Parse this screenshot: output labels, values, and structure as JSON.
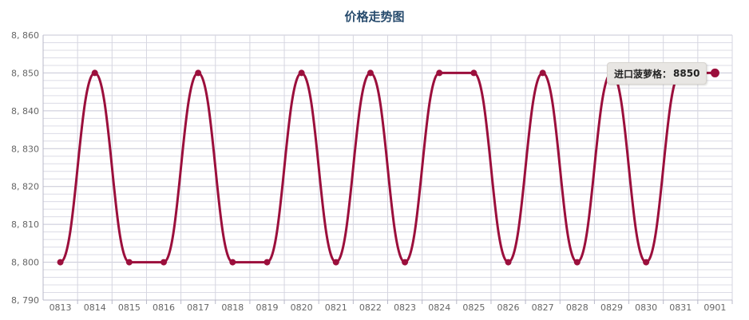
{
  "chart_data": {
    "type": "line",
    "title": "价格走势图",
    "xlabel": "",
    "ylabel": "",
    "categories": [
      "0813",
      "0814",
      "0815",
      "0816",
      "0817",
      "0818",
      "0819",
      "0820",
      "0821",
      "0822",
      "0823",
      "0824",
      "0825",
      "0826",
      "0827",
      "0828",
      "0829",
      "0830",
      "0831",
      "0901"
    ],
    "series": [
      {
        "name": "进口菠萝格",
        "color": "#9b0f3c",
        "values": [
          8800,
          8850,
          8800,
          8800,
          8850,
          8800,
          8800,
          8850,
          8800,
          8850,
          8800,
          8850,
          8850,
          8800,
          8850,
          8800,
          8850,
          8800,
          8850,
          8850
        ]
      }
    ],
    "ylim": [
      8790,
      8860
    ],
    "yticks": [
      8790,
      8800,
      8810,
      8820,
      8830,
      8840,
      8850,
      8860
    ],
    "ytick_labels": [
      "8, 790",
      "8, 800",
      "8, 810",
      "8, 820",
      "8, 830",
      "8, 840",
      "8, 850",
      "8, 860"
    ],
    "grid": true,
    "tooltip": {
      "label": "进口菠萝格：",
      "value": "8850",
      "category": "0901"
    }
  }
}
